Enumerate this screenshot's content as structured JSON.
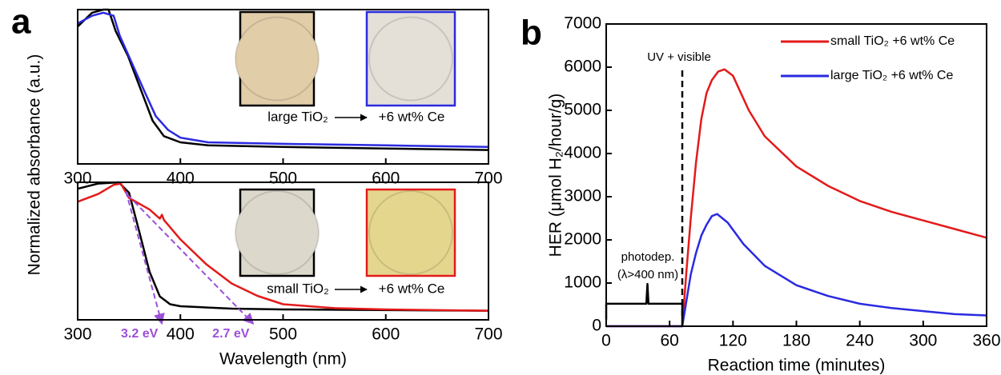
{
  "chart_data": [
    {
      "type": "line",
      "panel": "a",
      "ylabel": "Normalized absorbance (a.u.)",
      "xlim": [
        300,
        700
      ],
      "xticks": [
        300,
        400,
        500,
        600,
        700
      ],
      "ylim": [
        0,
        1
      ],
      "series": [
        {
          "color": "#000000",
          "x": [
            300,
            314,
            325,
            330,
            337,
            349,
            361,
            373,
            384,
            400,
            427,
            500,
            600,
            700
          ],
          "values": [
            0.89,
            0.98,
            1,
            1,
            0.86,
            0.7,
            0.49,
            0.28,
            0.18,
            0.14,
            0.12,
            0.11,
            0.1,
            0.09
          ]
        },
        {
          "color": "#2a2ae0",
          "x": [
            300,
            314,
            325,
            335,
            341,
            353,
            365,
            376,
            388,
            400,
            427,
            500,
            600,
            700
          ],
          "values": [
            0.91,
            0.96,
            0.98,
            0.96,
            0.83,
            0.65,
            0.47,
            0.31,
            0.22,
            0.17,
            0.14,
            0.13,
            0.12,
            0.11
          ]
        }
      ],
      "insets": [
        {
          "caption": "large TiO₂",
          "border": "#000000",
          "fill": "#e2cda9"
        },
        {
          "caption": "+6 wt% Ce",
          "border": "#2a2ae0",
          "fill": "#e4e0d8"
        }
      ]
    },
    {
      "type": "line",
      "xlabel": "Wavelength (nm)",
      "xlim": [
        300,
        700
      ],
      "xticks": [
        300,
        400,
        500,
        600,
        700
      ],
      "ylim": [
        -0.06,
        1
      ],
      "series": [
        {
          "color": "#000000",
          "x": [
            300,
            320,
            340,
            350,
            360,
            370,
            380,
            390,
            400,
            450,
            500,
            700
          ],
          "values": [
            0.95,
            0.99,
            1,
            0.92,
            0.62,
            0.31,
            0.12,
            0.06,
            0.045,
            0.026,
            0.02,
            0.01
          ]
        },
        {
          "color": "#e41a1a",
          "x": [
            300,
            320,
            335,
            342,
            350,
            370,
            380,
            382,
            384,
            400,
            425,
            450,
            475,
            500,
            550,
            600,
            700
          ],
          "values": [
            0.85,
            0.91,
            0.98,
            0.99,
            0.88,
            0.79,
            0.72,
            0.75,
            0.71,
            0.56,
            0.37,
            0.22,
            0.125,
            0.06,
            0.03,
            0.02,
            0.01
          ]
        }
      ],
      "tangents": [
        {
          "color": "#9b4fd9",
          "label": "3.2 eV",
          "x": [
            347,
            382
          ],
          "values": [
            0.93,
            -0.09
          ]
        },
        {
          "color": "#9b4fd9",
          "label": "2.7 eV",
          "x": [
            349,
            471
          ],
          "values": [
            0.9,
            -0.09
          ]
        }
      ],
      "insets": [
        {
          "caption": "small TiO₂",
          "border": "#000000",
          "fill": "#dcd8cc"
        },
        {
          "caption": "+6 wt% Ce",
          "border": "#e41a1a",
          "fill": "#e5d68e"
        }
      ]
    },
    {
      "type": "line",
      "panel": "b",
      "xlabel": "Reaction time (minutes)",
      "ylabel": "HER (μmol H₂/hour/g)",
      "xlim": [
        0,
        360
      ],
      "xticks": [
        0,
        60,
        120,
        180,
        240,
        300,
        360
      ],
      "ylim": [
        0,
        7000
      ],
      "yticks": [
        0,
        1000,
        2000,
        3000,
        4000,
        5000,
        6000,
        7000
      ],
      "legend": "upper right",
      "series": [
        {
          "name": "small TiO₂ +6 wt% Ce",
          "color": "#e41a1a",
          "x": [
            0,
            72,
            76,
            80,
            85,
            90,
            95,
            100,
            106,
            112,
            120,
            135,
            150,
            180,
            210,
            240,
            270,
            300,
            330,
            360
          ],
          "values": [
            0,
            0,
            1300,
            2500,
            3800,
            4800,
            5400,
            5700,
            5900,
            5950,
            5800,
            5000,
            4400,
            3700,
            3250,
            2900,
            2650,
            2450,
            2250,
            2050
          ]
        },
        {
          "name": "large TiO₂ +6 wt% Ce",
          "color": "#2a2ae0",
          "x": [
            0,
            72,
            76,
            80,
            85,
            90,
            95,
            100,
            105,
            115,
            130,
            150,
            180,
            210,
            240,
            270,
            300,
            330,
            360
          ],
          "values": [
            0,
            0,
            600,
            1200,
            1700,
            2100,
            2350,
            2550,
            2600,
            2400,
            1900,
            1400,
            950,
            700,
            520,
            420,
            350,
            280,
            250
          ]
        },
        {
          "color": "#000000",
          "x": [
            0,
            0,
            38,
            39,
            40,
            72,
            72
          ],
          "values": [
            150,
            520,
            520,
            980,
            520,
            520,
            150
          ]
        }
      ],
      "vline": {
        "x": 72,
        "label": "UV + visible"
      },
      "notes": [
        "photodep.",
        "(λ>400 nm)"
      ]
    }
  ]
}
